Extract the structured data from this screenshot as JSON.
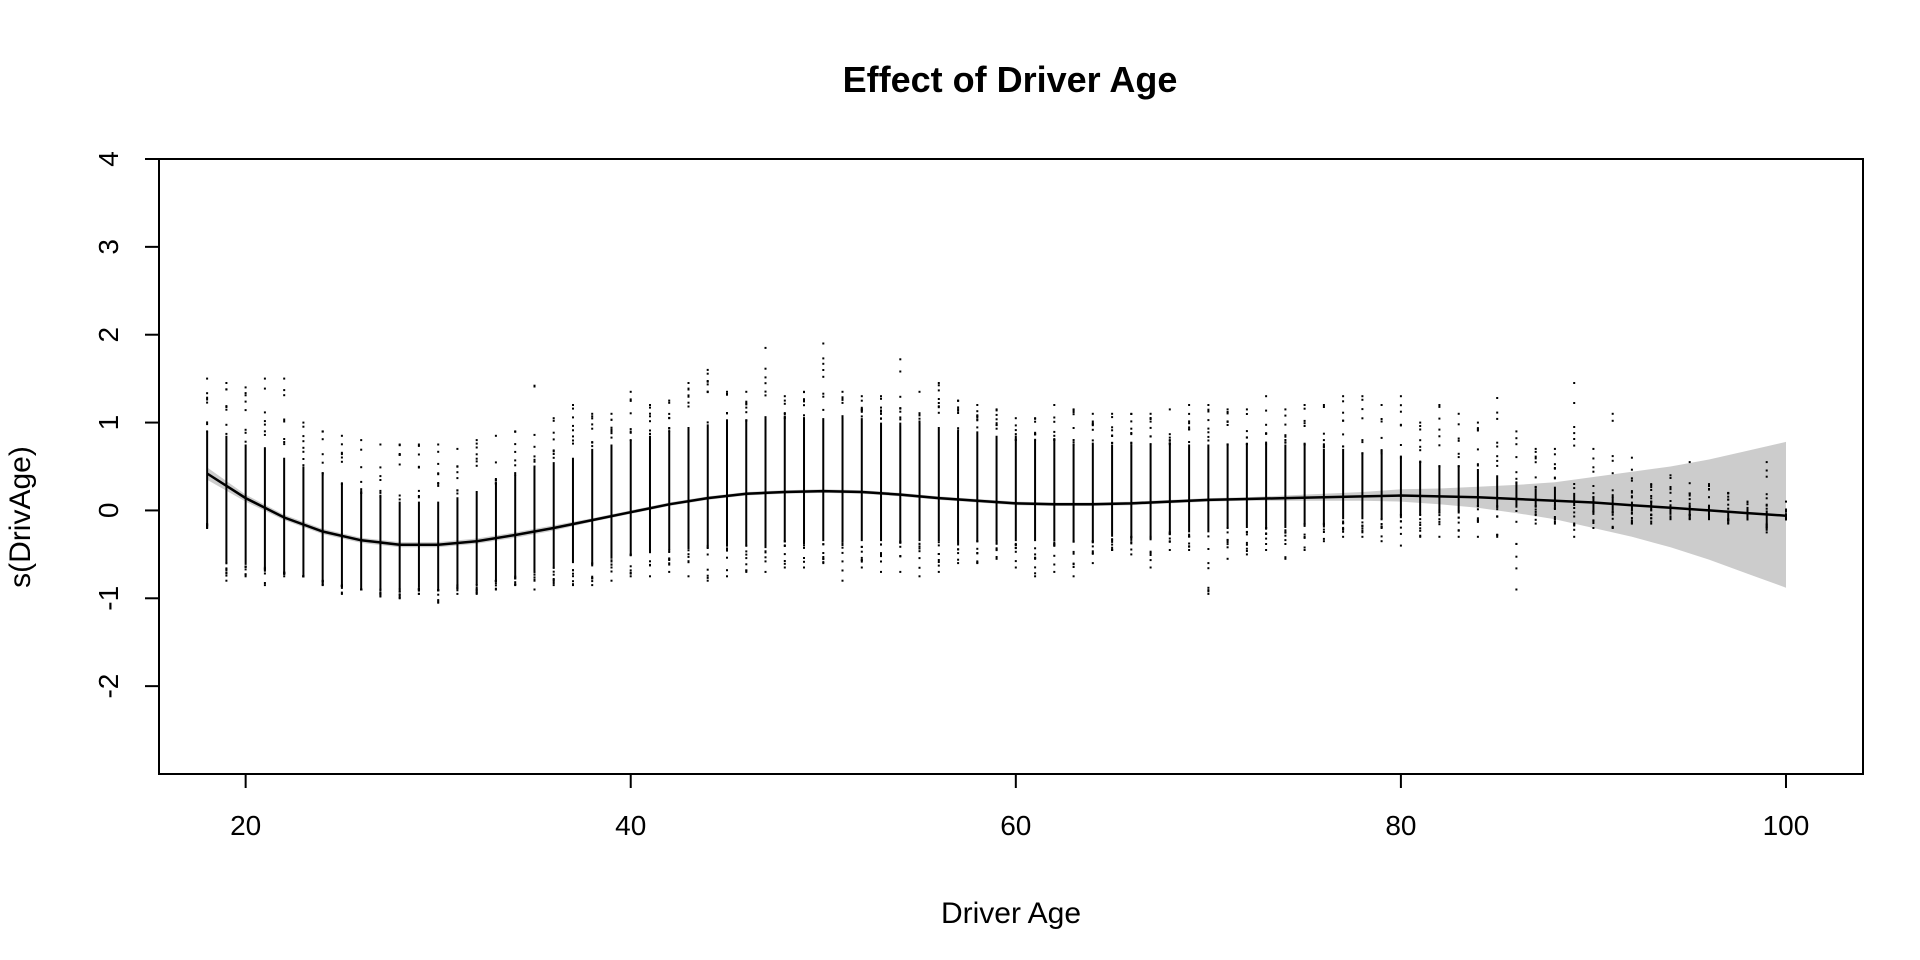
{
  "chart_data": {
    "type": "line",
    "title": "Effect of Driver Age",
    "xlabel": "Driver Age",
    "ylabel": "s(DrivAge)",
    "xlim": [
      15.5,
      104
    ],
    "ylim": [
      -3,
      4
    ],
    "xticks": [
      20,
      40,
      60,
      80,
      100
    ],
    "yticks": [
      -2,
      -1,
      0,
      1,
      2,
      3,
      4
    ],
    "grid": false,
    "legend": "none",
    "smooth": {
      "x": [
        18,
        20,
        22,
        24,
        26,
        28,
        30,
        32,
        34,
        36,
        38,
        40,
        42,
        44,
        46,
        48,
        50,
        52,
        54,
        56,
        58,
        60,
        62,
        64,
        66,
        68,
        70,
        72,
        74,
        76,
        78,
        80,
        82,
        84,
        86,
        88,
        90,
        92,
        94,
        96,
        98,
        100
      ],
      "y": [
        0.42,
        0.14,
        -0.08,
        -0.24,
        -0.34,
        -0.39,
        -0.39,
        -0.35,
        -0.28,
        -0.2,
        -0.11,
        -0.02,
        0.07,
        0.14,
        0.19,
        0.21,
        0.22,
        0.21,
        0.18,
        0.14,
        0.11,
        0.08,
        0.07,
        0.07,
        0.08,
        0.1,
        0.12,
        0.13,
        0.14,
        0.15,
        0.16,
        0.17,
        0.16,
        0.15,
        0.13,
        0.11,
        0.09,
        0.06,
        0.03,
        0.0,
        -0.03,
        -0.06
      ],
      "lower": [
        0.35,
        0.1,
        -0.11,
        -0.27,
        -0.37,
        -0.42,
        -0.42,
        -0.38,
        -0.31,
        -0.23,
        -0.13,
        -0.04,
        0.05,
        0.12,
        0.17,
        0.19,
        0.2,
        0.19,
        0.16,
        0.12,
        0.09,
        0.06,
        0.05,
        0.05,
        0.06,
        0.08,
        0.1,
        0.11,
        0.11,
        0.11,
        0.11,
        0.1,
        0.07,
        0.03,
        -0.03,
        -0.1,
        -0.2,
        -0.3,
        -0.42,
        -0.56,
        -0.72,
        -0.88
      ],
      "upper": [
        0.49,
        0.18,
        -0.05,
        -0.21,
        -0.31,
        -0.36,
        -0.36,
        -0.32,
        -0.25,
        -0.17,
        -0.09,
        0.0,
        0.09,
        0.16,
        0.21,
        0.23,
        0.24,
        0.23,
        0.2,
        0.16,
        0.13,
        0.1,
        0.09,
        0.09,
        0.1,
        0.12,
        0.14,
        0.15,
        0.17,
        0.19,
        0.21,
        0.24,
        0.25,
        0.27,
        0.29,
        0.32,
        0.38,
        0.44,
        0.5,
        0.58,
        0.68,
        0.78
      ]
    },
    "residuals": {
      "ages": [
        18,
        19,
        20,
        21,
        22,
        23,
        24,
        25,
        26,
        27,
        28,
        29,
        30,
        31,
        32,
        33,
        34,
        35,
        36,
        37,
        38,
        39,
        40,
        41,
        42,
        43,
        44,
        45,
        46,
        47,
        48,
        49,
        50,
        51,
        52,
        53,
        54,
        55,
        56,
        57,
        58,
        59,
        60,
        61,
        62,
        63,
        64,
        65,
        66,
        67,
        68,
        69,
        70,
        71,
        72,
        73,
        74,
        75,
        76,
        77,
        78,
        79,
        80,
        81,
        82,
        83,
        84,
        85,
        86,
        87,
        88,
        89,
        90,
        91,
        92,
        93,
        94,
        95,
        96,
        97,
        98,
        99,
        100
      ],
      "dense_low": [
        -0.15,
        -0.6,
        -0.62,
        -0.65,
        -0.7,
        -0.75,
        -0.8,
        -0.85,
        -0.9,
        -0.9,
        -0.9,
        -0.88,
        -0.9,
        -0.85,
        -0.85,
        -0.8,
        -0.75,
        -0.7,
        -0.65,
        -0.6,
        -0.6,
        -0.55,
        -0.5,
        -0.45,
        -0.45,
        -0.42,
        -0.4,
        -0.4,
        -0.4,
        -0.4,
        -0.35,
        -0.35,
        -0.35,
        -0.35,
        -0.35,
        -0.35,
        -0.35,
        -0.35,
        -0.35,
        -0.35,
        -0.35,
        -0.35,
        -0.35,
        -0.35,
        -0.35,
        -0.35,
        -0.35,
        -0.3,
        -0.3,
        -0.3,
        -0.25,
        -0.25,
        -0.25,
        -0.2,
        -0.2,
        -0.2,
        -0.2,
        -0.15,
        -0.15,
        -0.1,
        -0.1,
        -0.1,
        -0.05,
        -0.05,
        0.0,
        0.0,
        0.05,
        0.05,
        0.05,
        0.05,
        0.05,
        0.05,
        0.0,
        0.0,
        0.0,
        0.0,
        -0.05,
        -0.05,
        -0.05,
        -0.1,
        -0.1,
        -0.15,
        -0.1
      ],
      "dense_high": [
        0.9,
        0.85,
        0.75,
        0.7,
        0.6,
        0.5,
        0.4,
        0.3,
        0.2,
        0.15,
        0.1,
        0.1,
        0.1,
        0.15,
        0.2,
        0.3,
        0.4,
        0.5,
        0.55,
        0.6,
        0.7,
        0.75,
        0.8,
        0.85,
        0.9,
        0.95,
        0.98,
        1.0,
        1.02,
        1.05,
        1.05,
        1.05,
        1.05,
        1.05,
        1.05,
        1.0,
        1.0,
        1.0,
        0.95,
        0.9,
        0.9,
        0.85,
        0.8,
        0.8,
        0.8,
        0.75,
        0.75,
        0.75,
        0.75,
        0.75,
        0.75,
        0.75,
        0.75,
        0.75,
        0.75,
        0.75,
        0.75,
        0.75,
        0.7,
        0.7,
        0.65,
        0.65,
        0.6,
        0.55,
        0.5,
        0.5,
        0.45,
        0.4,
        0.3,
        0.25,
        0.25,
        0.2,
        0.15,
        0.15,
        0.1,
        0.1,
        0.05,
        0.05,
        0.05,
        0.0,
        0.0,
        0.0,
        -0.05
      ],
      "sparse_low": [
        -0.2,
        -0.8,
        -0.75,
        -0.85,
        -0.75,
        -0.75,
        -0.85,
        -0.95,
        -0.9,
        -0.98,
        -1.0,
        -0.95,
        -1.05,
        -0.95,
        -0.95,
        -0.9,
        -0.85,
        -0.9,
        -0.85,
        -0.85,
        -0.85,
        -0.8,
        -0.75,
        -0.75,
        -0.7,
        -0.75,
        -0.8,
        -0.75,
        -0.7,
        -0.7,
        -0.65,
        -0.65,
        -0.6,
        -0.8,
        -0.65,
        -0.7,
        -0.7,
        -0.75,
        -0.7,
        -0.6,
        -0.6,
        -0.55,
        -0.65,
        -0.75,
        -0.7,
        -0.75,
        -0.6,
        -0.45,
        -0.5,
        -0.65,
        -0.45,
        -0.45,
        -0.95,
        -0.55,
        -0.5,
        -0.45,
        -0.55,
        -0.45,
        -0.35,
        -0.3,
        -0.3,
        -0.35,
        -0.4,
        -0.3,
        -0.3,
        -0.3,
        -0.3,
        -0.3,
        -0.9,
        -0.15,
        -0.15,
        -0.3,
        -0.2,
        -0.2,
        -0.15,
        -0.15,
        -0.1,
        -0.1,
        -0.1,
        -0.15,
        -0.1,
        -0.25,
        -0.1
      ],
      "sparse_high": [
        1.5,
        1.45,
        1.4,
        1.5,
        1.5,
        1.0,
        0.9,
        0.85,
        0.8,
        0.75,
        0.75,
        0.75,
        0.75,
        0.7,
        0.8,
        0.85,
        0.9,
        1.42,
        1.05,
        1.2,
        1.1,
        1.1,
        1.35,
        1.2,
        1.25,
        1.45,
        1.6,
        1.35,
        1.35,
        1.85,
        1.3,
        1.35,
        1.9,
        1.35,
        1.3,
        1.3,
        1.72,
        1.35,
        1.45,
        1.25,
        1.2,
        1.15,
        1.05,
        1.05,
        1.2,
        1.15,
        1.1,
        1.1,
        1.1,
        1.1,
        1.15,
        1.2,
        1.2,
        1.15,
        1.15,
        1.3,
        1.15,
        1.2,
        1.2,
        1.3,
        1.3,
        1.2,
        1.3,
        1.0,
        1.2,
        1.1,
        1.0,
        1.28,
        0.9,
        0.7,
        0.7,
        1.45,
        0.7,
        1.1,
        0.6,
        0.3,
        0.4,
        0.55,
        0.3,
        0.2,
        0.1,
        0.55,
        0.1
      ]
    }
  }
}
